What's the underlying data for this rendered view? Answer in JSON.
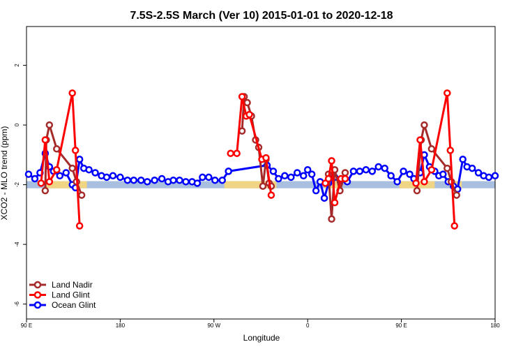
{
  "chart_data": {
    "type": "line",
    "title": "7.5S-2.5S March (Ver 10)   2015-01-01 to 2020-12-18",
    "xlabel": "Longitude",
    "ylabel": "XCO2 - MLO trend (ppm)",
    "xlim": [
      90,
      540
    ],
    "ylim": [
      -6.5,
      3.3
    ],
    "x_ticks": [
      {
        "value": 90,
        "label": "90 E"
      },
      {
        "value": 180,
        "label": "180"
      },
      {
        "value": 270,
        "label": "90 W"
      },
      {
        "value": 360,
        "label": "0"
      },
      {
        "value": 450,
        "label": "90 E"
      },
      {
        "value": 540,
        "label": "180"
      }
    ],
    "y_ticks": [
      {
        "value": 2,
        "label": "2"
      },
      {
        "value": 0,
        "label": "0"
      },
      {
        "value": -2,
        "label": "-2"
      },
      {
        "value": -4,
        "label": "-4"
      },
      {
        "value": -6,
        "label": "-6"
      }
    ],
    "legend_position": "bottom-left",
    "band": {
      "y_low": -2.12,
      "y_high": -1.88,
      "color": "#a9bfdf",
      "highlight_color": "#f7d77a",
      "highlights": [
        [
          108,
          148
        ],
        [
          280,
          330
        ],
        [
          376,
          392
        ],
        [
          448,
          482
        ],
        [
          497,
          508
        ]
      ]
    },
    "series": [
      {
        "name": "Land Nadir",
        "color": "#a52a2a",
        "points": [
          [
            108,
            -2.2
          ],
          [
            109,
            -0.5
          ],
          [
            112,
            0.0
          ],
          [
            119,
            -0.8
          ],
          [
            134,
            -1.45
          ],
          [
            138,
            -1.9
          ],
          [
            143,
            -2.35
          ]
        ]
      },
      {
        "name": "Land Glint",
        "color": "#ff0000",
        "points": [
          [
            104,
            -1.95
          ],
          [
            108,
            -0.5
          ],
          [
            112,
            -1.9
          ],
          [
            119,
            -1.5
          ],
          [
            134,
            1.07
          ],
          [
            137,
            -0.85
          ],
          [
            141,
            -3.38
          ]
        ]
      },
      {
        "name": "Ocean Glint",
        "color": "#0000ff",
        "points": [
          [
            92,
            -1.65
          ],
          [
            98,
            -1.8
          ],
          [
            103,
            -1.6
          ],
          [
            108,
            -0.95
          ],
          [
            112,
            -1.4
          ],
          [
            116,
            -1.55
          ],
          [
            122,
            -1.7
          ],
          [
            128,
            -1.6
          ],
          [
            134,
            -2.0
          ],
          [
            137,
            -2.1
          ],
          [
            141,
            -1.15
          ],
          [
            145,
            -1.45
          ],
          [
            150,
            -1.5
          ],
          [
            156,
            -1.6
          ],
          [
            162,
            -1.7
          ],
          [
            167,
            -1.75
          ],
          [
            173,
            -1.7
          ],
          [
            180,
            -1.75
          ],
          [
            187,
            -1.85
          ],
          [
            193,
            -1.85
          ],
          [
            200,
            -1.85
          ],
          [
            206,
            -1.9
          ],
          [
            213,
            -1.85
          ],
          [
            220,
            -1.8
          ],
          [
            226,
            -1.9
          ],
          [
            231,
            -1.85
          ],
          [
            237,
            -1.85
          ],
          [
            243,
            -1.9
          ],
          [
            249,
            -1.9
          ],
          [
            254,
            -1.95
          ],
          [
            259,
            -1.75
          ],
          [
            265,
            -1.75
          ],
          [
            271,
            -1.85
          ],
          [
            278,
            -1.85
          ],
          [
            284,
            -1.55
          ]
        ]
      },
      {
        "name": "Land Nadir",
        "color": "#a52a2a",
        "points": [
          [
            297,
            -0.2
          ],
          [
            299,
            0.95
          ],
          [
            302,
            0.75
          ],
          [
            306,
            0.3
          ],
          [
            310,
            -0.5
          ],
          [
            313,
            -0.75
          ],
          [
            317,
            -2.05
          ],
          [
            320,
            -1.15
          ],
          [
            323,
            -1.95
          ],
          [
            325,
            -2.05
          ]
        ]
      },
      {
        "name": "Land Glint",
        "color": "#ff0000",
        "points": [
          [
            286,
            -0.95
          ],
          [
            292,
            -0.95
          ],
          [
            297,
            0.95
          ],
          [
            301,
            0.3
          ],
          [
            304,
            0.35
          ],
          [
            316,
            -1.15
          ],
          [
            320,
            -1.1
          ],
          [
            325,
            -2.35
          ]
        ]
      },
      {
        "name": "Ocean Glint",
        "color": "#0000ff",
        "points": [
          [
            284,
            -1.55
          ],
          [
            321,
            -1.35
          ],
          [
            327,
            -1.55
          ],
          [
            332,
            -1.8
          ],
          [
            338,
            -1.7
          ],
          [
            344,
            -1.75
          ],
          [
            350,
            -1.6
          ],
          [
            356,
            -1.7
          ],
          [
            360,
            -1.5
          ],
          [
            364,
            -1.65
          ],
          [
            368,
            -2.2
          ],
          [
            372,
            -1.9
          ],
          [
            376,
            -2.45
          ],
          [
            380,
            -1.95
          ],
          [
            386,
            -1.75
          ],
          [
            392,
            -1.85
          ],
          [
            398,
            -1.9
          ],
          [
            404,
            -1.55
          ],
          [
            410,
            -1.55
          ],
          [
            416,
            -1.5
          ],
          [
            422,
            -1.55
          ],
          [
            428,
            -1.4
          ],
          [
            434,
            -1.45
          ],
          [
            440,
            -1.7
          ],
          [
            446,
            -1.9
          ],
          [
            452,
            -1.55
          ],
          [
            458,
            -1.65
          ],
          [
            462,
            -1.8
          ],
          [
            468,
            -1.6
          ],
          [
            472,
            -1.0
          ],
          [
            477,
            -1.4
          ],
          [
            482,
            -1.55
          ],
          [
            486,
            -1.7
          ],
          [
            490,
            -1.65
          ],
          [
            495,
            -1.9
          ],
          [
            500,
            -2.05
          ],
          [
            504,
            -2.15
          ],
          [
            509,
            -1.15
          ],
          [
            513,
            -1.4
          ],
          [
            518,
            -1.45
          ],
          [
            524,
            -1.6
          ],
          [
            529,
            -1.7
          ],
          [
            534,
            -1.75
          ],
          [
            540,
            -1.7
          ]
        ]
      },
      {
        "name": "Land Nadir",
        "color": "#a52a2a",
        "points": [
          [
            380,
            -1.65
          ],
          [
            383,
            -3.15
          ],
          [
            386,
            -1.5
          ],
          [
            391,
            -2.2
          ],
          [
            396,
            -1.6
          ]
        ]
      },
      {
        "name": "Land Glint",
        "color": "#ff0000",
        "points": [
          [
            377,
            -1.95
          ],
          [
            380,
            -1.8
          ],
          [
            383,
            -1.2
          ],
          [
            386,
            -2.6
          ],
          [
            392,
            -1.8
          ],
          [
            396,
            -1.8
          ]
        ]
      },
      {
        "name": "Land Nadir",
        "color": "#a52a2a",
        "points": [
          [
            465,
            -2.2
          ],
          [
            469,
            -0.5
          ],
          [
            472,
            0.0
          ],
          [
            479,
            -0.8
          ],
          [
            494,
            -1.45
          ],
          [
            498,
            -1.9
          ],
          [
            503,
            -2.35
          ]
        ]
      },
      {
        "name": "Land Glint",
        "color": "#ff0000",
        "points": [
          [
            464,
            -1.95
          ],
          [
            468,
            -0.5
          ],
          [
            472,
            -1.9
          ],
          [
            479,
            -1.5
          ],
          [
            494,
            1.07
          ],
          [
            497,
            -0.85
          ],
          [
            501,
            -3.38
          ]
        ]
      }
    ],
    "legend": [
      {
        "label": "Land Nadir",
        "color": "#a52a2a"
      },
      {
        "label": "Land Glint",
        "color": "#ff0000"
      },
      {
        "label": "Ocean Glint",
        "color": "#0000ff"
      }
    ]
  }
}
